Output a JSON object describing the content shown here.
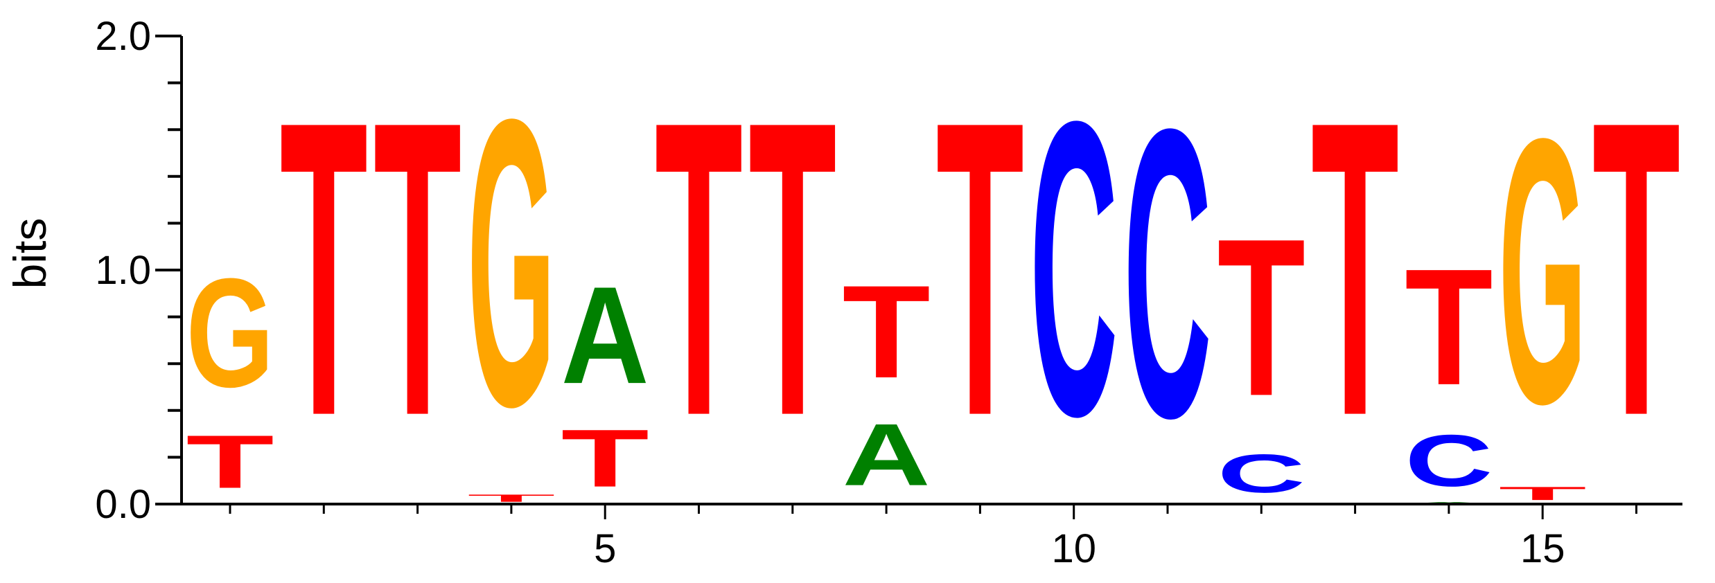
{
  "chart_data": {
    "type": "sequence-logo",
    "ylabel": "bits",
    "ylim": [
      0,
      2
    ],
    "y_ticks": [
      "0.0",
      "1.0",
      "2.0"
    ],
    "y_tick_values": [
      0,
      1,
      2
    ],
    "y_minor_step": 0.2,
    "x_tick_labels": [
      "5",
      "10",
      "15"
    ],
    "x_tick_values": [
      5,
      10,
      15
    ],
    "positions": [
      1,
      2,
      3,
      4,
      5,
      6,
      7,
      8,
      9,
      10,
      11,
      12,
      13,
      14,
      15,
      16
    ],
    "colors": {
      "A": "#008000",
      "C": "#0000ff",
      "G": "#ffa500",
      "T": "#ff0000"
    },
    "stacks": [
      [
        {
          "base": "T",
          "bits": 0.36
        },
        {
          "base": "G",
          "bits": 0.74
        }
      ],
      [
        {
          "base": "T",
          "bits": 2.0
        }
      ],
      [
        {
          "base": "T",
          "bits": 2.0
        }
      ],
      [
        {
          "base": "T",
          "bits": 0.05
        },
        {
          "base": "G",
          "bits": 1.95
        }
      ],
      [
        {
          "base": "T",
          "bits": 0.39
        },
        {
          "base": "A",
          "bits": 0.66
        }
      ],
      [
        {
          "base": "T",
          "bits": 2.0
        }
      ],
      [
        {
          "base": "T",
          "bits": 2.0
        }
      ],
      [
        {
          "base": "A",
          "bits": 0.42
        },
        {
          "base": "T",
          "bits": 0.63
        }
      ],
      [
        {
          "base": "T",
          "bits": 2.0
        }
      ],
      [
        {
          "base": "C",
          "bits": 2.0
        }
      ],
      [
        {
          "base": "C",
          "bits": 1.96
        }
      ],
      [
        {
          "base": "C",
          "bits": 0.26
        },
        {
          "base": "T",
          "bits": 1.07
        }
      ],
      [
        {
          "base": "T",
          "bits": 2.0
        }
      ],
      [
        {
          "base": "A",
          "bits": 0.01
        },
        {
          "base": "C",
          "bits": 0.35
        },
        {
          "base": "T",
          "bits": 0.79
        }
      ],
      [
        {
          "base": "T",
          "bits": 0.09
        },
        {
          "base": "G",
          "bits": 1.8
        }
      ],
      [
        {
          "base": "T",
          "bits": 2.0
        }
      ]
    ]
  }
}
